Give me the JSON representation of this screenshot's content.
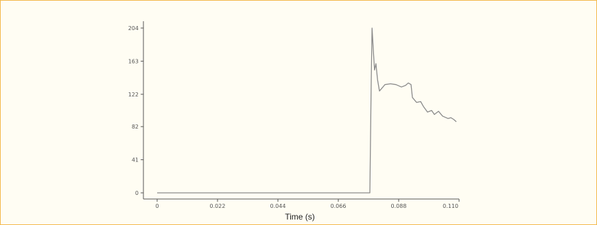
{
  "colors": {
    "frame_border": "#f3b84a",
    "background": "#fffdf3",
    "line": "#8a8a8a",
    "axis": "#555555"
  },
  "chart_data": {
    "type": "line",
    "title": "",
    "xlabel": "Time (s)",
    "ylabel": "",
    "xlim": [
      0,
      0.11
    ],
    "ylim": [
      0,
      204
    ],
    "grid": false,
    "x_ticks": [
      0,
      0.022,
      0.044,
      0.066,
      0.088,
      0.11
    ],
    "x_tick_labels": [
      "0",
      "0.022",
      "0.044",
      "0.066",
      "0.088",
      "0.110"
    ],
    "y_ticks": [
      0,
      41,
      82,
      122,
      163,
      204
    ],
    "y_tick_labels": [
      "0",
      "41",
      "82",
      "122",
      "163",
      "204"
    ],
    "series": [
      {
        "values_xy": [
          [
            0,
            0
          ],
          [
            0.0775,
            0
          ],
          [
            0.078,
            140
          ],
          [
            0.0783,
            204
          ],
          [
            0.0787,
            180
          ],
          [
            0.0792,
            152
          ],
          [
            0.0797,
            160
          ],
          [
            0.0803,
            140
          ],
          [
            0.081,
            126
          ],
          [
            0.082,
            130
          ],
          [
            0.083,
            134
          ],
          [
            0.085,
            135
          ],
          [
            0.087,
            134
          ],
          [
            0.089,
            131
          ],
          [
            0.0905,
            133
          ],
          [
            0.0915,
            136
          ],
          [
            0.0925,
            134
          ],
          [
            0.093,
            118
          ],
          [
            0.0945,
            112
          ],
          [
            0.096,
            113
          ],
          [
            0.097,
            107
          ],
          [
            0.0985,
            100
          ],
          [
            0.1,
            102
          ],
          [
            0.101,
            97
          ],
          [
            0.1025,
            101
          ],
          [
            0.104,
            95
          ],
          [
            0.106,
            92
          ],
          [
            0.107,
            93
          ],
          [
            0.108,
            91
          ],
          [
            0.109,
            88
          ]
        ]
      }
    ]
  }
}
